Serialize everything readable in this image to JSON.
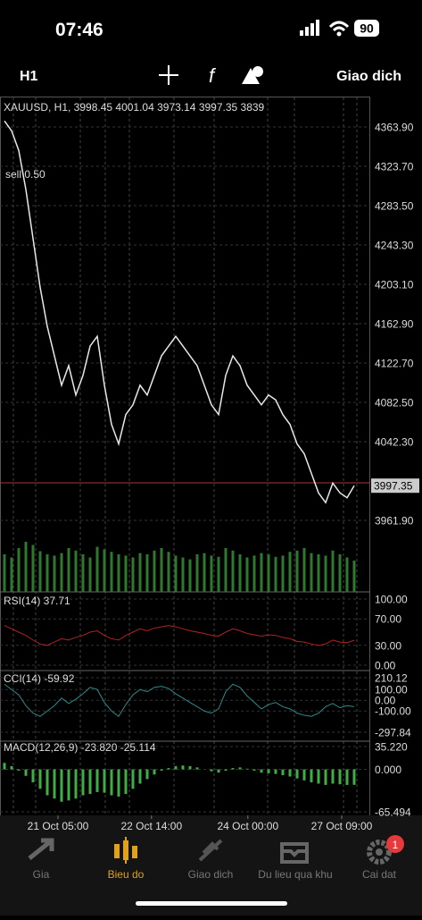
{
  "status_bar": {
    "time": "07:46",
    "battery": "90"
  },
  "toolbar": {
    "timeframe": "H1",
    "action": "Giao dich"
  },
  "chart_data": [
    {
      "type": "line",
      "title": "XAUUSD, H1, 3998.45 4001.04 3973.14 3997.35 3839",
      "annotation": "sell 0.50",
      "color": "#e8e8e8",
      "values": [
        4370,
        4360,
        4340,
        4300,
        4250,
        4200,
        4160,
        4130,
        4100,
        4120,
        4090,
        4110,
        4140,
        4150,
        4100,
        4060,
        4040,
        4070,
        4080,
        4100,
        4090,
        4110,
        4130,
        4140,
        4150,
        4140,
        4130,
        4120,
        4100,
        4080,
        4070,
        4110,
        4130,
        4120,
        4100,
        4090,
        4080,
        4090,
        4085,
        4070,
        4060,
        4040,
        4030,
        4010,
        3990,
        3980,
        4000,
        3990,
        3985,
        3997.35
      ],
      "volume": [
        60,
        55,
        70,
        80,
        75,
        65,
        60,
        58,
        62,
        70,
        66,
        60,
        55,
        72,
        68,
        64,
        60,
        58,
        55,
        62,
        60,
        66,
        70,
        64,
        58,
        55,
        52,
        60,
        62,
        58,
        56,
        70,
        66,
        60,
        55,
        58,
        62,
        60,
        56,
        58,
        64,
        66,
        70,
        62,
        60,
        58,
        66,
        60,
        55,
        50
      ],
      "volume_lim": [
        0,
        100
      ],
      "xlim": [
        -0.625,
        50.625
      ],
      "xticks": [
        {
          "value": 7.5,
          "label": "21 Oct 05:00"
        },
        {
          "value": 20.6,
          "label": "22 Oct 14:00"
        },
        {
          "value": 34.1,
          "label": "24 Oct 00:00"
        },
        {
          "value": 47.25,
          "label": "27 Oct 09:00"
        }
      ],
      "ylim": [
        3947.3,
        4395.0
      ],
      "yticks": [
        {
          "value": 4363.9,
          "label": "4363.90"
        },
        {
          "value": 4323.7,
          "label": "4323.70"
        },
        {
          "value": 4283.5,
          "label": "4283.50"
        },
        {
          "value": 4243.3,
          "label": "4243.30"
        },
        {
          "value": 4203.1,
          "label": "4203.10"
        },
        {
          "value": 4162.9,
          "label": "4162.90"
        },
        {
          "value": 4122.7,
          "label": "4122.70"
        },
        {
          "value": 4082.5,
          "label": "4082.50"
        },
        {
          "value": 4042.3,
          "label": "4042.30"
        },
        {
          "value": 3961.9,
          "label": "3961.90"
        }
      ],
      "price_label": 3997.35
    },
    {
      "type": "line",
      "title": "RSI(14) 37.71",
      "color": "#b22222",
      "values": [
        60,
        55,
        50,
        45,
        38,
        32,
        30,
        35,
        40,
        38,
        42,
        45,
        50,
        52,
        45,
        40,
        38,
        45,
        50,
        55,
        52,
        56,
        58,
        60,
        58,
        55,
        52,
        50,
        48,
        45,
        44,
        50,
        55,
        52,
        48,
        46,
        44,
        46,
        45,
        42,
        40,
        36,
        35,
        32,
        30,
        32,
        38,
        35,
        34,
        37.71
      ],
      "xlim": [
        -0.625,
        50.625
      ],
      "ylim": [
        0,
        100
      ],
      "yticks": [
        {
          "value": 100,
          "label": "100.00"
        },
        {
          "value": 70,
          "label": "70.00"
        },
        {
          "value": 30,
          "label": "30.00"
        },
        {
          "value": 0,
          "label": "0.00"
        }
      ]
    },
    {
      "type": "line",
      "title": "CCI(14) -59.92",
      "color": "#2e8b8b",
      "values": [
        150,
        100,
        50,
        -50,
        -120,
        -150,
        -100,
        -50,
        20,
        -30,
        10,
        60,
        120,
        100,
        -20,
        -100,
        -150,
        -40,
        50,
        100,
        80,
        120,
        130,
        110,
        60,
        20,
        -20,
        -60,
        -100,
        -120,
        -80,
        80,
        150,
        120,
        40,
        -20,
        -80,
        -40,
        -20,
        -60,
        -80,
        -120,
        -140,
        -150,
        -120,
        -60,
        -30,
        -70,
        -50,
        -59.92
      ],
      "xlim": [
        -0.625,
        50.625
      ],
      "ylim": [
        -297.84,
        210.12
      ],
      "yticks": [
        {
          "value": 210.12,
          "label": "210.12"
        },
        {
          "value": 100,
          "label": "100.00"
        },
        {
          "value": 0,
          "label": "0.00"
        },
        {
          "value": -100,
          "label": "-100.00"
        },
        {
          "value": -297.84,
          "label": "-297.84"
        }
      ]
    },
    {
      "type": "bar",
      "title": "MACD(12,26,9) -23.820 -25.114",
      "color": "#3cb043",
      "values": [
        10,
        5,
        -2,
        -10,
        -20,
        -30,
        -40,
        -45,
        -50,
        -48,
        -45,
        -40,
        -38,
        -35,
        -36,
        -40,
        -42,
        -38,
        -30,
        -22,
        -15,
        -8,
        -2,
        2,
        5,
        6,
        5,
        3,
        0,
        -3,
        -5,
        -2,
        2,
        3,
        1,
        -2,
        -5,
        -6,
        -7,
        -9,
        -11,
        -14,
        -17,
        -20,
        -22,
        -24,
        -22,
        -23,
        -24,
        -23.82
      ],
      "xlim": [
        -0.625,
        50.625
      ],
      "ylim": [
        -65.494,
        35.22
      ],
      "yticks": [
        {
          "value": 35.22,
          "label": "35.220"
        },
        {
          "value": 0,
          "label": "0.000"
        },
        {
          "value": -65.494,
          "label": "-65.494"
        }
      ]
    }
  ],
  "nav": [
    {
      "label": "Gia"
    },
    {
      "label": "Bieu do"
    },
    {
      "label": "Giao dich"
    },
    {
      "label": "Du lieu qua khu"
    },
    {
      "label": "Cai dat",
      "badge": "1"
    }
  ]
}
